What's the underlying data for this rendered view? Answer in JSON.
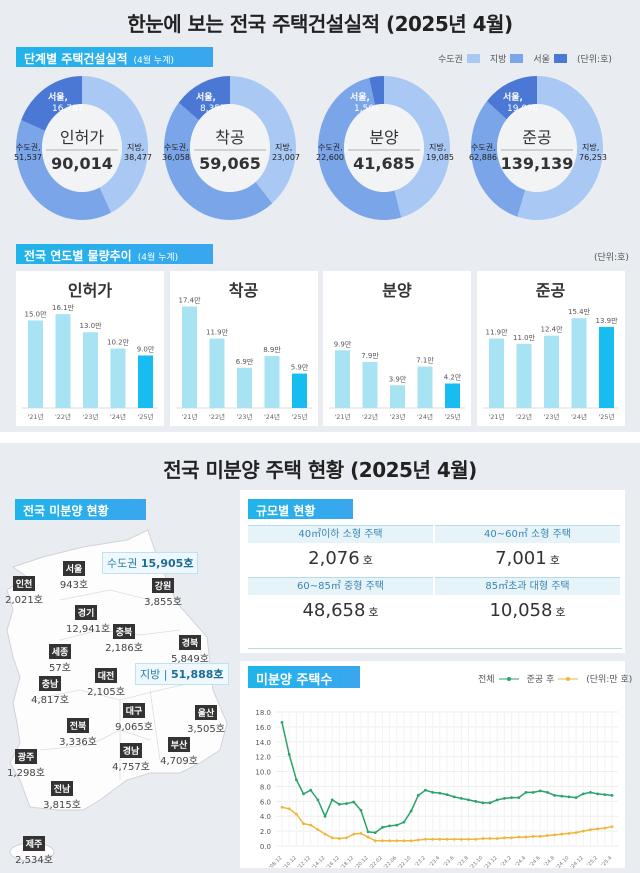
{
  "top": {
    "title": "한눈에 보는 전국 주택건설실적 (2025년 4월)",
    "stage_section": {
      "label": "단계별 주택건설실적",
      "sub": "(4월 누계)",
      "unit": "(단위:호)",
      "legend": [
        {
          "name": "수도권",
          "color": "#a9c8f3"
        },
        {
          "name": "지방",
          "color": "#7aa5e8"
        },
        {
          "name": "서울",
          "color": "#4a78d4"
        }
      ]
    },
    "donuts": [
      {
        "name": "인허가",
        "total": "90,014",
        "capital_label": "수도권,",
        "capital": "51,537",
        "local_label": "지방,",
        "local": "38,477",
        "seoul_label": "서울,",
        "seoul": "16,787",
        "values": {
          "capital": 51537,
          "local": 38477,
          "seoul": 16787
        }
      },
      {
        "name": "착공",
        "total": "59,065",
        "capital_label": "수도권,",
        "capital": "36,058",
        "local_label": "지방,",
        "local": "23,007",
        "seoul_label": "서울,",
        "seoul": "8,357",
        "values": {
          "capital": 36058,
          "local": 23007,
          "seoul": 8357
        }
      },
      {
        "name": "분양",
        "total": "41,685",
        "capital_label": "수도권,",
        "capital": "22,600",
        "local_label": "지방,",
        "local": "19,085",
        "seoul_label": "서울,",
        "seoul": "1,501",
        "values": {
          "capital": 22600,
          "local": 19085,
          "seoul": 1501
        }
      },
      {
        "name": "준공",
        "total": "139,139",
        "capital_label": "수도권,",
        "capital": "62,886",
        "local_label": "지방,",
        "local": "76,253",
        "seoul_label": "서울,",
        "seoul": "19,090",
        "values": {
          "capital": 62886,
          "local": 76253,
          "seoul": 19090
        }
      }
    ],
    "trend_section": {
      "label": "전국 연도별 물량추이",
      "sub": "(4월 누계)",
      "unit": "(단위:호)"
    }
  },
  "chart_data": [
    {
      "type": "bar",
      "title": "인허가",
      "categories": [
        "'21년",
        "'22년",
        "'23년",
        "'24년",
        "'25년"
      ],
      "values": [
        15.0,
        16.1,
        13.0,
        10.2,
        9.0
      ],
      "labels": [
        "15.0만",
        "16.1만",
        "13.0만",
        "10.2만",
        "9.0만"
      ]
    },
    {
      "type": "bar",
      "title": "착공",
      "categories": [
        "'21년",
        "'22년",
        "'23년",
        "'24년",
        "'25년"
      ],
      "values": [
        17.4,
        11.9,
        6.9,
        8.9,
        5.9
      ],
      "labels": [
        "17.4만",
        "11.9만",
        "6.9만",
        "8.9만",
        "5.9만"
      ]
    },
    {
      "type": "bar",
      "title": "분양",
      "categories": [
        "'21년",
        "'22년",
        "'23년",
        "'24년",
        "'25년"
      ],
      "values": [
        9.9,
        7.9,
        3.9,
        7.1,
        4.2
      ],
      "labels": [
        "9.9만",
        "7.9만",
        "3.9만",
        "7.1만",
        "4.2만"
      ]
    },
    {
      "type": "bar",
      "title": "준공",
      "categories": [
        "'21년",
        "'22년",
        "'23년",
        "'24년",
        "'25년"
      ],
      "values": [
        11.9,
        11.0,
        12.4,
        15.4,
        13.9
      ],
      "labels": [
        "11.9만",
        "11.0만",
        "12.4만",
        "15.4만",
        "13.9만"
      ]
    },
    {
      "type": "line",
      "title": "미분양 주택수",
      "unit": "(단위:만 호)",
      "ylim": [
        0,
        18
      ],
      "yticks": [
        "0.0",
        "2.0",
        "4.0",
        "6.0",
        "8.0",
        "10.0",
        "12.0",
        "14.0",
        "16.0",
        "18.0"
      ],
      "grid": true,
      "legend": "top-right",
      "xticks": [
        "'08.12",
        "'10.12",
        "'12.12",
        "'14.12",
        "'16.12",
        "'18.12",
        "'20.12",
        "'22.02",
        "'22.06",
        "'22.10",
        "'23.2",
        "'23.4",
        "'23.6",
        "'23.8",
        "'23.10",
        "'23.12",
        "'24.2",
        "'24.4",
        "'24.6",
        "'24.8",
        "'24.10",
        "'24.12",
        "'25.2",
        "'25.4"
      ],
      "series": [
        {
          "name": "전체",
          "color": "#2aa36b",
          "values": [
            16.6,
            12.3,
            8.9,
            7.0,
            7.5,
            6.2,
            4.0,
            6.2,
            5.6,
            5.7,
            5.9,
            4.8,
            1.9,
            1.8,
            2.5,
            2.7,
            2.8,
            3.2,
            4.7,
            6.8,
            7.5,
            7.2,
            7.1,
            6.9,
            6.6,
            6.4,
            6.2,
            6.0,
            5.8,
            5.8,
            6.2,
            6.4,
            6.5,
            6.5,
            7.2,
            7.2,
            7.4,
            7.2,
            6.8,
            6.7,
            6.6,
            6.5,
            7.0,
            7.2,
            7.0,
            6.9,
            6.8
          ]
        },
        {
          "name": "준공 후",
          "color": "#f0b63a",
          "values": [
            5.2,
            5.0,
            4.3,
            3.0,
            2.8,
            2.2,
            1.6,
            1.1,
            1.0,
            1.1,
            1.6,
            1.7,
            1.2,
            0.7,
            0.7,
            0.7,
            0.7,
            0.7,
            0.7,
            0.8,
            0.9,
            0.9,
            0.9,
            0.9,
            0.9,
            0.9,
            0.9,
            0.9,
            1.0,
            1.0,
            1.0,
            1.1,
            1.1,
            1.2,
            1.2,
            1.3,
            1.3,
            1.4,
            1.5,
            1.6,
            1.7,
            1.8,
            2.0,
            2.2,
            2.3,
            2.4,
            2.6
          ]
        }
      ]
    }
  ],
  "bottom": {
    "title": "전국 미분양 주택 현황 (2025년 4월)",
    "map_section": {
      "label": "전국 미분양 현황",
      "capital": {
        "label": "수도권",
        "value": "15,905호"
      },
      "local": {
        "label": "지방",
        "value": "51,888호"
      },
      "regions": [
        {
          "name": "서울",
          "value": "943호"
        },
        {
          "name": "인천",
          "value": "2,021호"
        },
        {
          "name": "강원",
          "value": "3,855호"
        },
        {
          "name": "경기",
          "value": "12,941호"
        },
        {
          "name": "충북",
          "value": "2,186호"
        },
        {
          "name": "경북",
          "value": "5,849호"
        },
        {
          "name": "세종",
          "value": "57호"
        },
        {
          "name": "대전",
          "value": "2,105호"
        },
        {
          "name": "충남",
          "value": "4,817호"
        },
        {
          "name": "대구",
          "value": "9,065호"
        },
        {
          "name": "울산",
          "value": "3,505호"
        },
        {
          "name": "전북",
          "value": "3,336호"
        },
        {
          "name": "광주",
          "value": "1,298호"
        },
        {
          "name": "경남",
          "value": "4,757호"
        },
        {
          "name": "부산",
          "value": "4,709호"
        },
        {
          "name": "전남",
          "value": "3,815호"
        },
        {
          "name": "제주",
          "value": "2,534호"
        }
      ]
    },
    "size_section": {
      "label": "규모별 현황",
      "unit": "호",
      "cells": [
        {
          "label": "40㎡이하 소형 주택",
          "value": "2,076"
        },
        {
          "label": "40~60㎡ 소형 주택",
          "value": "7,001"
        },
        {
          "label": "60~85㎡ 중형 주택",
          "value": "48,658"
        },
        {
          "label": "85㎡초과 대형 주택",
          "value": "10,058"
        }
      ]
    },
    "line_section": {
      "label": "미분양 주택수",
      "legend_total": "전체",
      "legend_after": "준공 후",
      "unit": "(단위:만 호)"
    }
  }
}
